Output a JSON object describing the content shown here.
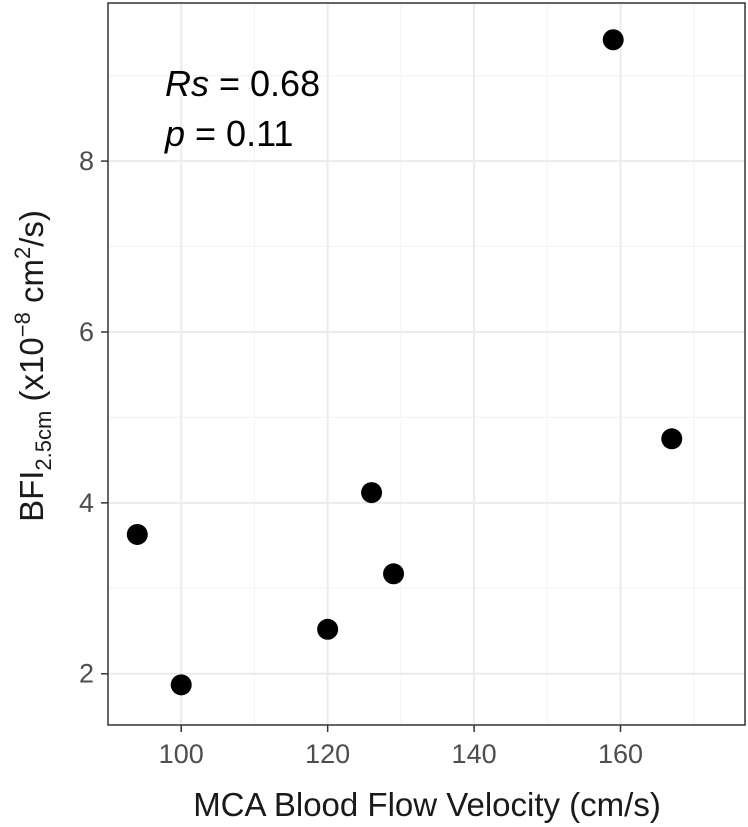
{
  "chart_data": {
    "type": "scatter",
    "xlabel": "MCA Blood Flow Velocity (cm/s)",
    "ylabel": {
      "base": "BFI",
      "subscript": "2.5cm",
      "prefix": " (x10",
      "exponent": "−8",
      "unit": " cm",
      "unit_exp": "2",
      "suffix": "/s)"
    },
    "xlim": [
      90,
      177
    ],
    "ylim": [
      1.4,
      9.85
    ],
    "x_ticks": [
      100,
      120,
      140,
      160
    ],
    "y_ticks": [
      2,
      4,
      6,
      8
    ],
    "x_tick_labels": [
      "100",
      "120",
      "140",
      "160"
    ],
    "y_tick_labels": [
      "2",
      "4",
      "6",
      "8"
    ],
    "grid": true,
    "points": [
      {
        "x": 94,
        "y": 3.63
      },
      {
        "x": 100,
        "y": 1.87
      },
      {
        "x": 120,
        "y": 2.52
      },
      {
        "x": 126,
        "y": 4.12
      },
      {
        "x": 129,
        "y": 3.17
      },
      {
        "x": 159,
        "y": 9.42
      },
      {
        "x": 167,
        "y": 4.75
      }
    ],
    "annotations": {
      "rs": {
        "label": "Rs",
        "value": " = 0.68"
      },
      "p": {
        "label": "p",
        "value": " = 0.11"
      }
    },
    "colors": {
      "point": "#000000",
      "grid_major": "#ebebeb",
      "grid_minor": "#f4f4f4",
      "panel_border": "#333333"
    }
  }
}
